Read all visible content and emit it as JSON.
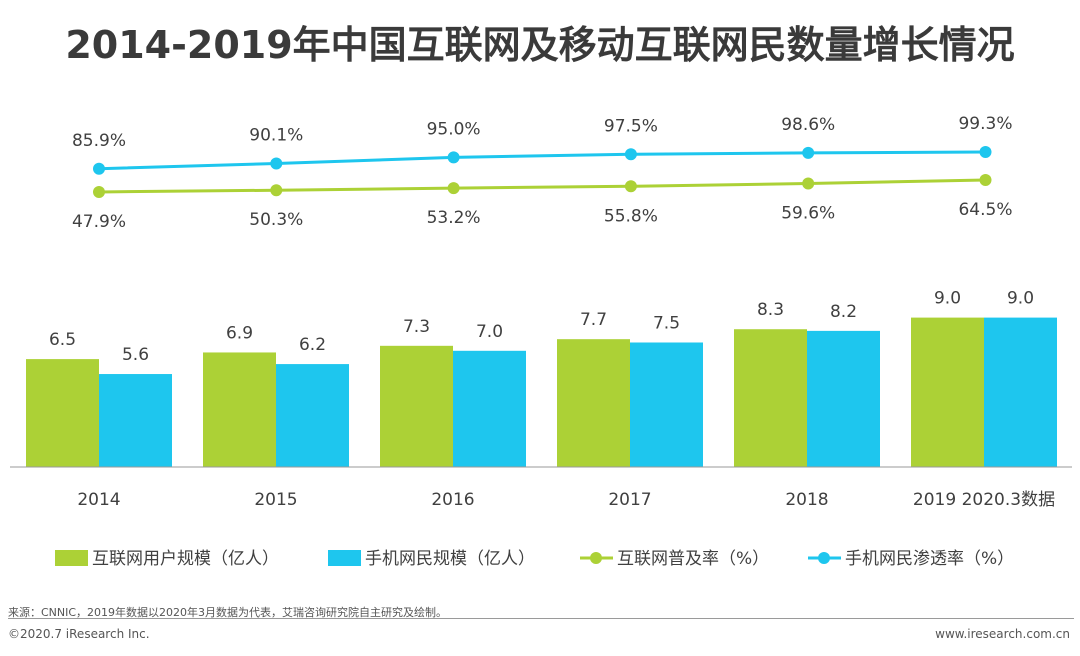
{
  "title": "2014-2019年中国互联网及移动互联网民数量增长情况",
  "chart_data": {
    "type": "bar+line",
    "categories": [
      "2014",
      "2015",
      "2016",
      "2017",
      "2018",
      "2019 2020.3数据"
    ],
    "bar_series": [
      {
        "name": "互联网用户规模（亿人）",
        "color": "#acd136",
        "values": [
          6.5,
          6.9,
          7.3,
          7.7,
          8.3,
          9.0
        ],
        "labels": [
          "6.5",
          "6.9",
          "7.3",
          "7.7",
          "8.3",
          "9.0"
        ]
      },
      {
        "name": "手机网民规模（亿人）",
        "color": "#1ec6ee",
        "values": [
          5.6,
          6.2,
          7.0,
          7.5,
          8.2,
          9.0
        ],
        "labels": [
          "5.6",
          "6.2",
          "7.0",
          "7.5",
          "8.2",
          "9.0"
        ]
      }
    ],
    "line_series": [
      {
        "name": "互联网普及率（%）",
        "color": "#acd136",
        "values": [
          47.9,
          50.3,
          53.2,
          55.8,
          59.6,
          64.5
        ],
        "labels": [
          "47.9%",
          "50.3%",
          "53.2%",
          "55.8%",
          "59.6%",
          "64.5%"
        ],
        "label_position": "below"
      },
      {
        "name": "手机网民渗透率（%）",
        "color": "#1ec6ee",
        "values": [
          85.9,
          90.1,
          95.0,
          97.5,
          98.6,
          99.3
        ],
        "labels": [
          "85.9%",
          "90.1%",
          "95.0%",
          "97.5%",
          "98.6%",
          "99.3%"
        ],
        "label_position": "above"
      }
    ],
    "bar_ylim": [
      0,
      10
    ],
    "legend_position": "bottom"
  },
  "footer": {
    "source": "来源：CNNIC，2019年数据以2020年3月数据为代表，艾瑞咨询研究院自主研究及绘制。",
    "copyright": "©2020.7 iResearch Inc.",
    "website": "www.iresearch.com.cn"
  }
}
